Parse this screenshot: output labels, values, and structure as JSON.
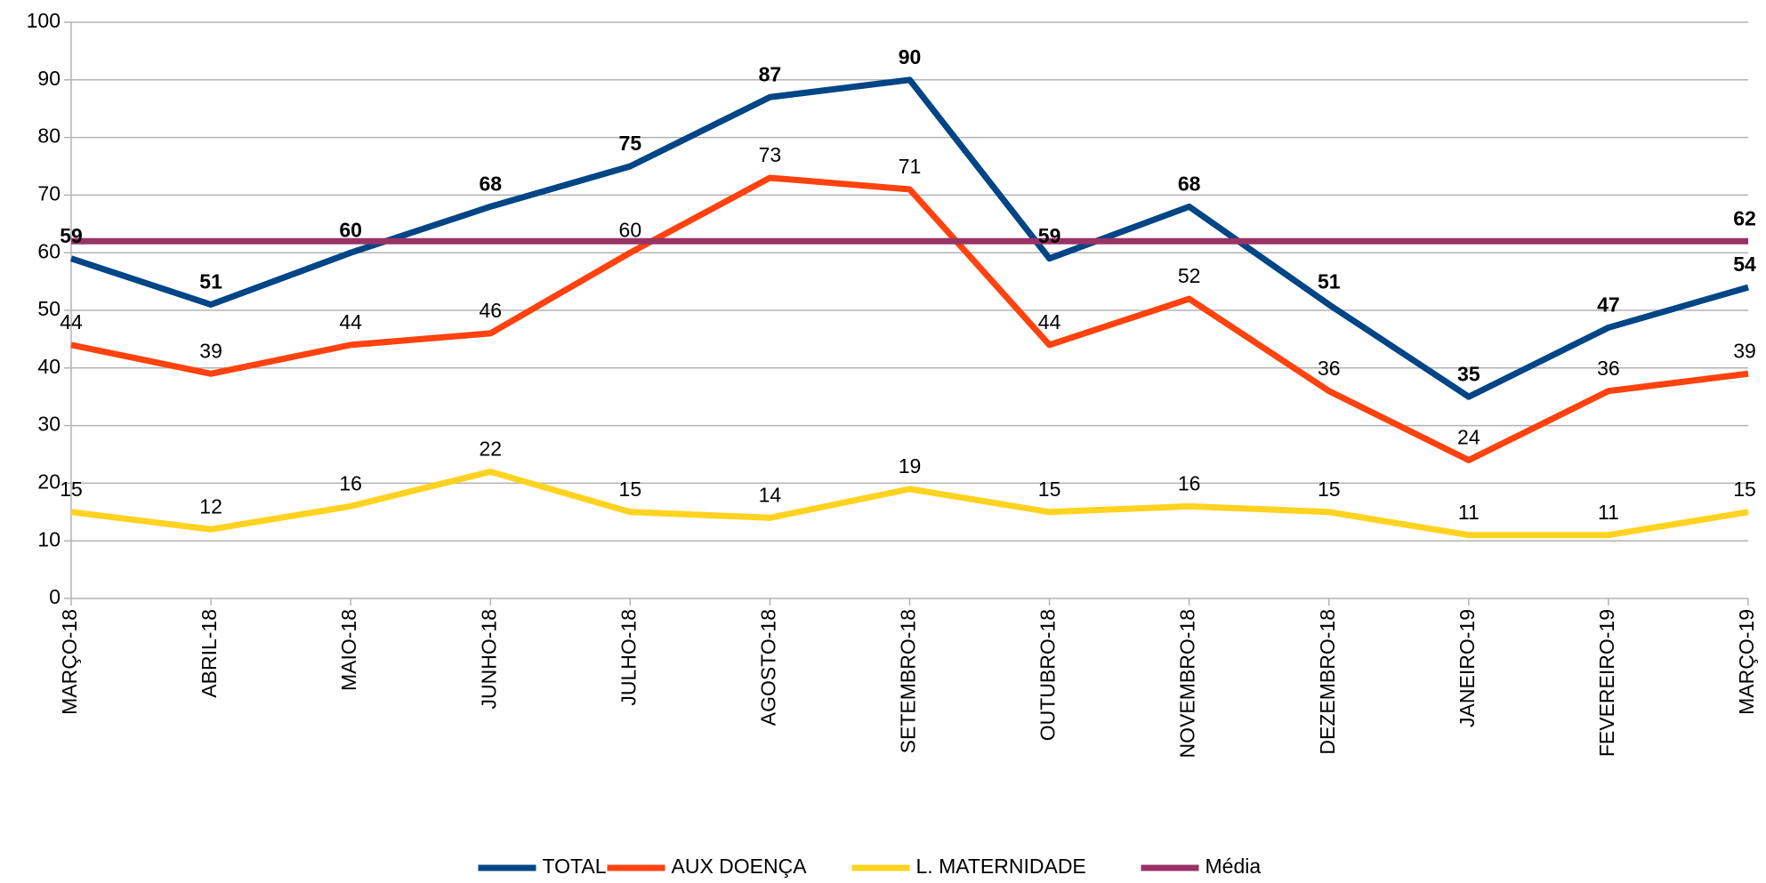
{
  "chart_data": {
    "type": "line",
    "categories": [
      "MARÇO-18",
      "ABRIL-18",
      "MAIO-18",
      "JUNHO-18",
      "JULHO-18",
      "AGOSTO-18",
      "SETEMBRO-18",
      "OUTUBRO-18",
      "NOVEMBRO-18",
      "DEZEMBRO-18",
      "JANEIRO-19",
      "FEVEREIRO-19",
      "MARÇO-19"
    ],
    "series": [
      {
        "name": "TOTAL",
        "color": "#004586",
        "values": [
          59,
          51,
          60,
          68,
          75,
          87,
          90,
          59,
          68,
          51,
          35,
          47,
          54
        ]
      },
      {
        "name": "AUX DOENÇA",
        "color": "#ff420e",
        "values": [
          44,
          39,
          44,
          46,
          60,
          73,
          71,
          44,
          52,
          36,
          24,
          36,
          39
        ]
      },
      {
        "name": "L. MATERNIDADE",
        "color": "#ffd320",
        "values": [
          15,
          12,
          16,
          22,
          15,
          14,
          19,
          15,
          16,
          15,
          11,
          11,
          15
        ]
      },
      {
        "name": "Média",
        "color": "#993366",
        "values": [
          62,
          62,
          62,
          62,
          62,
          62,
          62,
          62,
          62,
          62,
          62,
          62,
          62
        ]
      }
    ],
    "ylim": [
      0,
      100
    ],
    "yticks": [
      0,
      10,
      20,
      30,
      40,
      50,
      60,
      70,
      80,
      90,
      100
    ],
    "grid": true,
    "legend": "bottom"
  }
}
